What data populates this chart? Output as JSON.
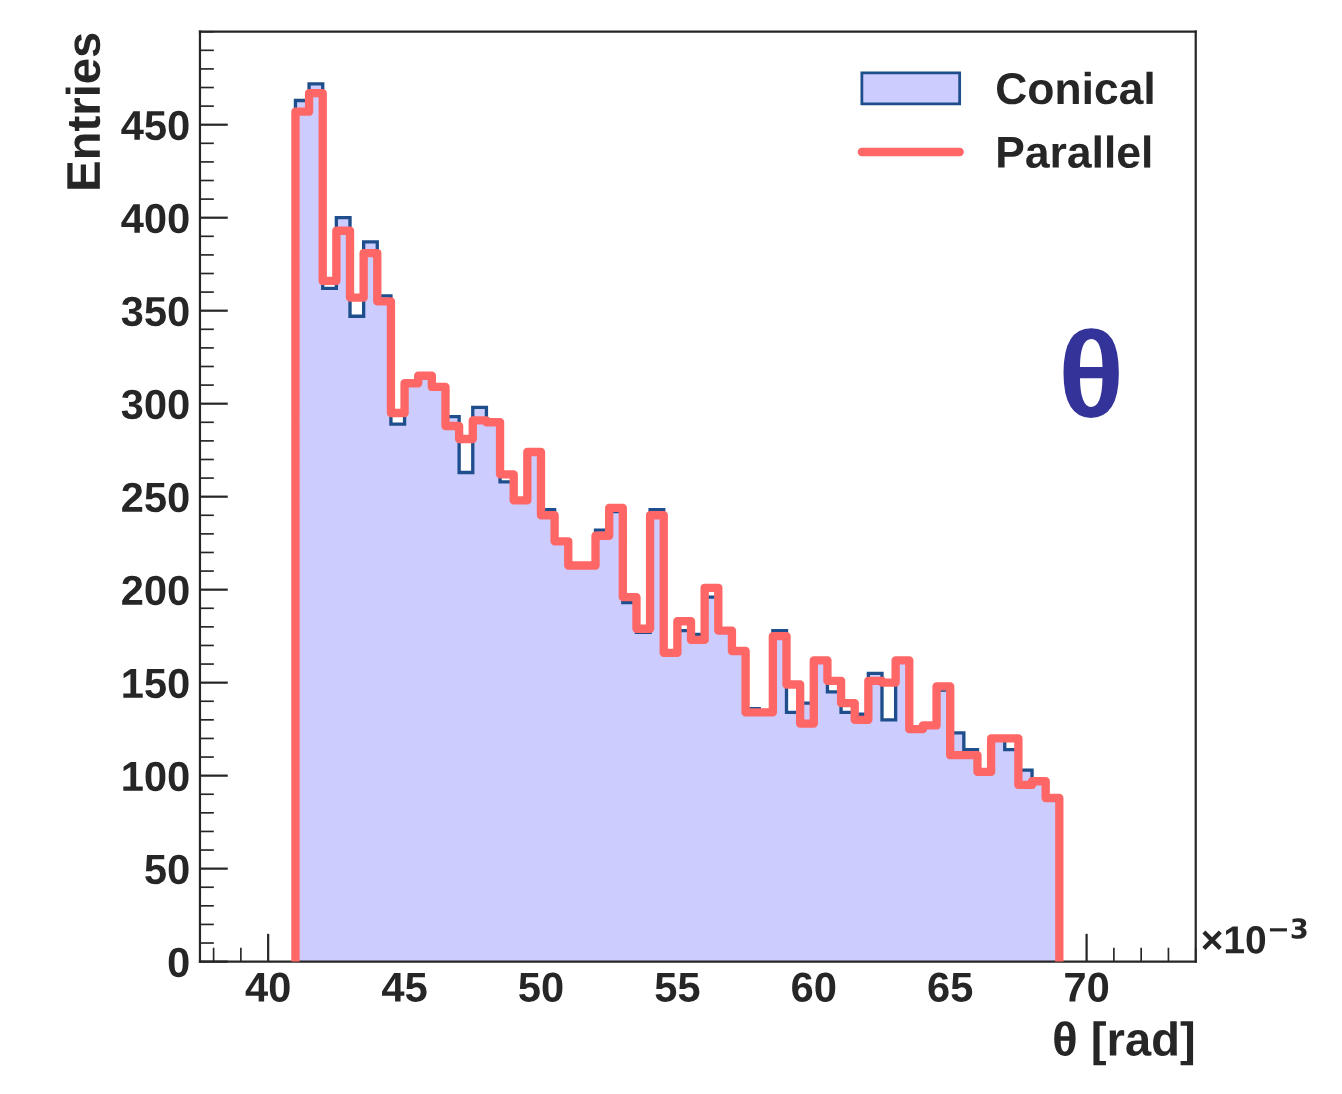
{
  "chart_data": {
    "type": "histogram",
    "xlabel": "θ [rad]",
    "ylabel": "Entries",
    "bins": [
      41.0,
      41.5,
      42.0,
      42.5,
      43.0,
      43.5,
      44.0,
      44.5,
      45.0,
      45.5,
      46.0,
      46.5,
      47.0,
      47.5,
      48.0,
      48.5,
      49.0,
      49.5,
      50.0,
      50.5,
      51.0,
      51.5,
      52.0,
      52.5,
      53.0,
      53.5,
      54.0,
      54.5,
      55.0,
      55.5,
      56.0,
      56.5,
      57.0,
      57.5,
      58.0,
      58.5,
      59.0,
      59.5,
      60.0,
      60.5,
      61.0,
      61.5,
      62.0,
      62.5,
      63.0,
      63.5,
      64.0,
      64.5,
      65.0,
      65.5,
      66.0,
      66.5,
      67.0,
      67.5,
      68.0,
      68.5,
      69.0
    ],
    "series": [
      {
        "name": "Conical",
        "color": "#ccccff",
        "values": [
          463,
          472,
          362,
          400,
          347,
          387,
          358,
          289,
          311,
          314,
          309,
          293,
          263,
          298,
          291,
          258,
          248,
          274,
          243,
          225,
          213,
          213,
          232,
          242,
          193,
          177,
          243,
          166,
          178,
          176,
          196,
          178,
          167,
          136,
          134,
          178,
          134,
          139,
          162,
          145,
          134,
          133,
          155,
          130,
          162,
          124,
          127,
          146,
          123,
          114,
          102,
          120,
          114,
          103,
          97,
          88
        ]
      },
      {
        "name": "Parallel",
        "color": "#ff6666",
        "values": [
          457,
          467,
          366,
          393,
          357,
          381,
          355,
          295,
          311,
          315,
          309,
          288,
          281,
          291,
          290,
          262,
          248,
          274,
          240,
          226,
          213,
          213,
          229,
          244,
          196,
          179,
          240,
          166,
          183,
          173,
          201,
          178,
          167,
          134,
          134,
          175,
          149,
          128,
          162,
          151,
          139,
          130,
          151,
          150,
          162,
          125,
          127,
          148,
          111,
          111,
          102,
          120,
          120,
          95,
          97,
          88
        ]
      }
    ],
    "xlim": [
      37.5,
      74
    ],
    "ylim": [
      0,
      500
    ],
    "xticks": [
      40,
      45,
      50,
      55,
      60,
      65,
      70
    ],
    "yticks": [
      0,
      50,
      100,
      150,
      200,
      250,
      300,
      350,
      400,
      450
    ],
    "legend": "top right",
    "grid": false,
    "annotations": [
      "θ",
      "×10$^{−3}$"
    ]
  }
}
